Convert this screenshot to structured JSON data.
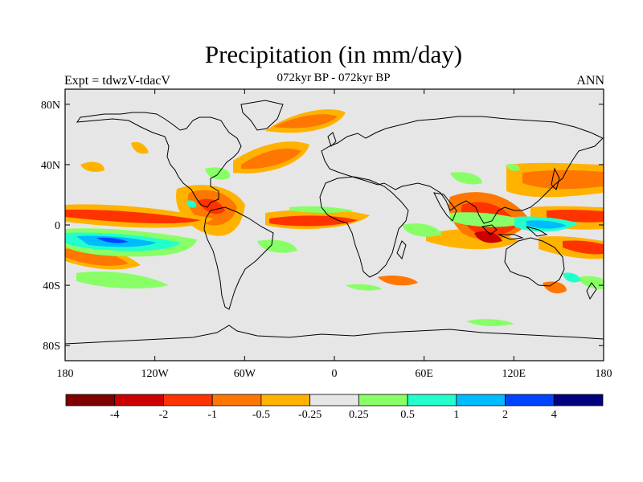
{
  "title": "Precipitation (in mm/day)",
  "left_label": "Expt = tdwzV-tdacV",
  "center_label": "072kyr BP - 072kyr BP",
  "right_label": "ANN",
  "map": {
    "projection": "cylindrical-equidistant",
    "lon_range": [
      -180,
      180
    ],
    "lat_range": [
      -90,
      90
    ],
    "background_color": "#e6e6e6",
    "coastline_color": "#000000",
    "lon_ticks": [
      {
        "value": -180,
        "label": "180"
      },
      {
        "value": -120,
        "label": "120W"
      },
      {
        "value": -60,
        "label": "60W"
      },
      {
        "value": 0,
        "label": "0"
      },
      {
        "value": 60,
        "label": "60E"
      },
      {
        "value": 120,
        "label": "120E"
      },
      {
        "value": 180,
        "label": "180"
      }
    ],
    "lat_ticks": [
      {
        "value": 80,
        "label": "80N"
      },
      {
        "value": 40,
        "label": "40N"
      },
      {
        "value": 0,
        "label": "0"
      },
      {
        "value": -40,
        "label": "40S"
      },
      {
        "value": -80,
        "label": "80S"
      }
    ]
  },
  "colorbar": {
    "colors": [
      "#800000",
      "#cc0000",
      "#ff3300",
      "#ff7700",
      "#ffb300",
      "#e6e6e6",
      "#88ff66",
      "#22ffcc",
      "#00bbff",
      "#0044ff",
      "#000080"
    ],
    "labels": [
      "-4",
      "-2",
      "-1",
      "-0.5",
      "-0.25",
      "0.25",
      "0.5",
      "1",
      "2",
      "4"
    ]
  }
}
